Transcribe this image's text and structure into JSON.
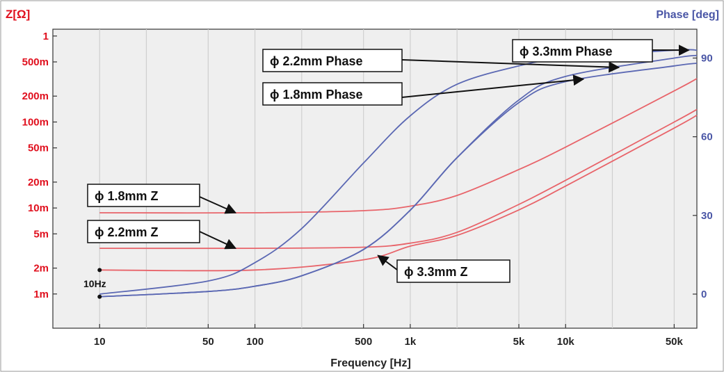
{
  "chart_data": {
    "type": "line",
    "xlabel": "Frequency [Hz]",
    "ylabel_left": "Z[Ω]",
    "ylabel_right": "Phase [deg]",
    "x_scale": "log",
    "xlim": [
      5,
      70000
    ],
    "x_ticks": [
      {
        "value": 10,
        "label": "10"
      },
      {
        "value": 50,
        "label": "50"
      },
      {
        "value": 100,
        "label": "100"
      },
      {
        "value": 500,
        "label": "500"
      },
      {
        "value": 1000,
        "label": "1k"
      },
      {
        "value": 5000,
        "label": "5k"
      },
      {
        "value": 10000,
        "label": "10k"
      },
      {
        "value": 50000,
        "label": "50k"
      }
    ],
    "x_grid": [
      10,
      20,
      50,
      100,
      200,
      500,
      1000,
      2000,
      5000,
      10000,
      20000,
      50000
    ],
    "left_scale": "log",
    "left_lim": [
      0.0004,
      1.2
    ],
    "left_ticks": [
      {
        "value": 1,
        "label": "1"
      },
      {
        "value": 0.5,
        "label": "500m"
      },
      {
        "value": 0.2,
        "label": "200m"
      },
      {
        "value": 0.1,
        "label": "100m"
      },
      {
        "value": 0.05,
        "label": "50m"
      },
      {
        "value": 0.02,
        "label": "20m"
      },
      {
        "value": 0.01,
        "label": "10m"
      },
      {
        "value": 0.005,
        "label": "5m"
      },
      {
        "value": 0.002,
        "label": "2m"
      },
      {
        "value": 0.001,
        "label": "1m"
      }
    ],
    "right_lim": [
      -13,
      101
    ],
    "right_ticks": [
      {
        "value": 0,
        "label": "0"
      },
      {
        "value": 30,
        "label": "30"
      },
      {
        "value": 60,
        "label": "60"
      },
      {
        "value": 90,
        "label": "90"
      }
    ],
    "grid": true,
    "start_marker": "10Hz",
    "series": [
      {
        "name": "ϕ 1.8mm Z",
        "axis": "left",
        "color": "#e8646a",
        "x": [
          10,
          100,
          500,
          1000,
          2000,
          5000,
          10000,
          50000,
          70000
        ],
        "y": [
          0.0088,
          0.0088,
          0.0093,
          0.0105,
          0.014,
          0.028,
          0.051,
          0.23,
          0.32
        ]
      },
      {
        "name": "ϕ 2.2mm Z",
        "axis": "left",
        "color": "#e8646a",
        "x": [
          10,
          100,
          500,
          1000,
          2000,
          5000,
          10000,
          50000,
          70000
        ],
        "y": [
          0.0034,
          0.0034,
          0.0035,
          0.0039,
          0.0052,
          0.011,
          0.021,
          0.1,
          0.14
        ]
      },
      {
        "name": "ϕ 3.3mm Z",
        "axis": "left",
        "color": "#e8646a",
        "x": [
          10,
          100,
          500,
          1000,
          2000,
          5000,
          10000,
          50000,
          70000
        ],
        "y": [
          0.0019,
          0.0019,
          0.0025,
          0.0036,
          0.0048,
          0.0095,
          0.018,
          0.085,
          0.12
        ]
      },
      {
        "name": "ϕ 1.8mm Phase",
        "axis": "right",
        "color": "#5b68b3",
        "x": [
          10,
          50,
          100,
          200,
          500,
          1000,
          2000,
          5000,
          10000,
          50000,
          70000
        ],
        "y": [
          -1,
          1,
          3,
          7,
          17,
          32,
          52,
          73,
          81,
          87,
          88
        ]
      },
      {
        "name": "ϕ 2.2mm Phase",
        "axis": "right",
        "color": "#5b68b3",
        "x": [
          10,
          50,
          100,
          200,
          500,
          1000,
          2000,
          5000,
          10000,
          50000,
          70000
        ],
        "y": [
          -1,
          1,
          3,
          7,
          17,
          32,
          52,
          74,
          83,
          90,
          91
        ]
      },
      {
        "name": "ϕ 3.3mm Phase",
        "axis": "right",
        "color": "#5b68b3",
        "x": [
          10,
          50,
          100,
          200,
          500,
          1000,
          2000,
          5000,
          10000,
          50000,
          70000
        ],
        "y": [
          0,
          5,
          12,
          25,
          50,
          68,
          80,
          87,
          90,
          93,
          93
        ]
      }
    ],
    "callouts": [
      {
        "text": "ϕ 2.2mm  Phase",
        "series": "ϕ 2.2mm Phase",
        "at_x": 22000
      },
      {
        "text": "ϕ 1.8mm  Phase",
        "series": "ϕ 1.8mm Phase",
        "at_x": 13000
      },
      {
        "text": "ϕ 3.3mm  Phase",
        "series": "ϕ 3.3mm Phase",
        "at_x": 62000
      },
      {
        "text": "ϕ 1.8mm   Z",
        "series": "ϕ 1.8mm Z",
        "at_x": 75
      },
      {
        "text": "ϕ 2.2mm   Z",
        "series": "ϕ 2.2mm Z",
        "at_x": 75
      },
      {
        "text": "ϕ 3.3mm   Z",
        "series": "ϕ 3.3mm Z",
        "at_x": 620
      }
    ]
  }
}
